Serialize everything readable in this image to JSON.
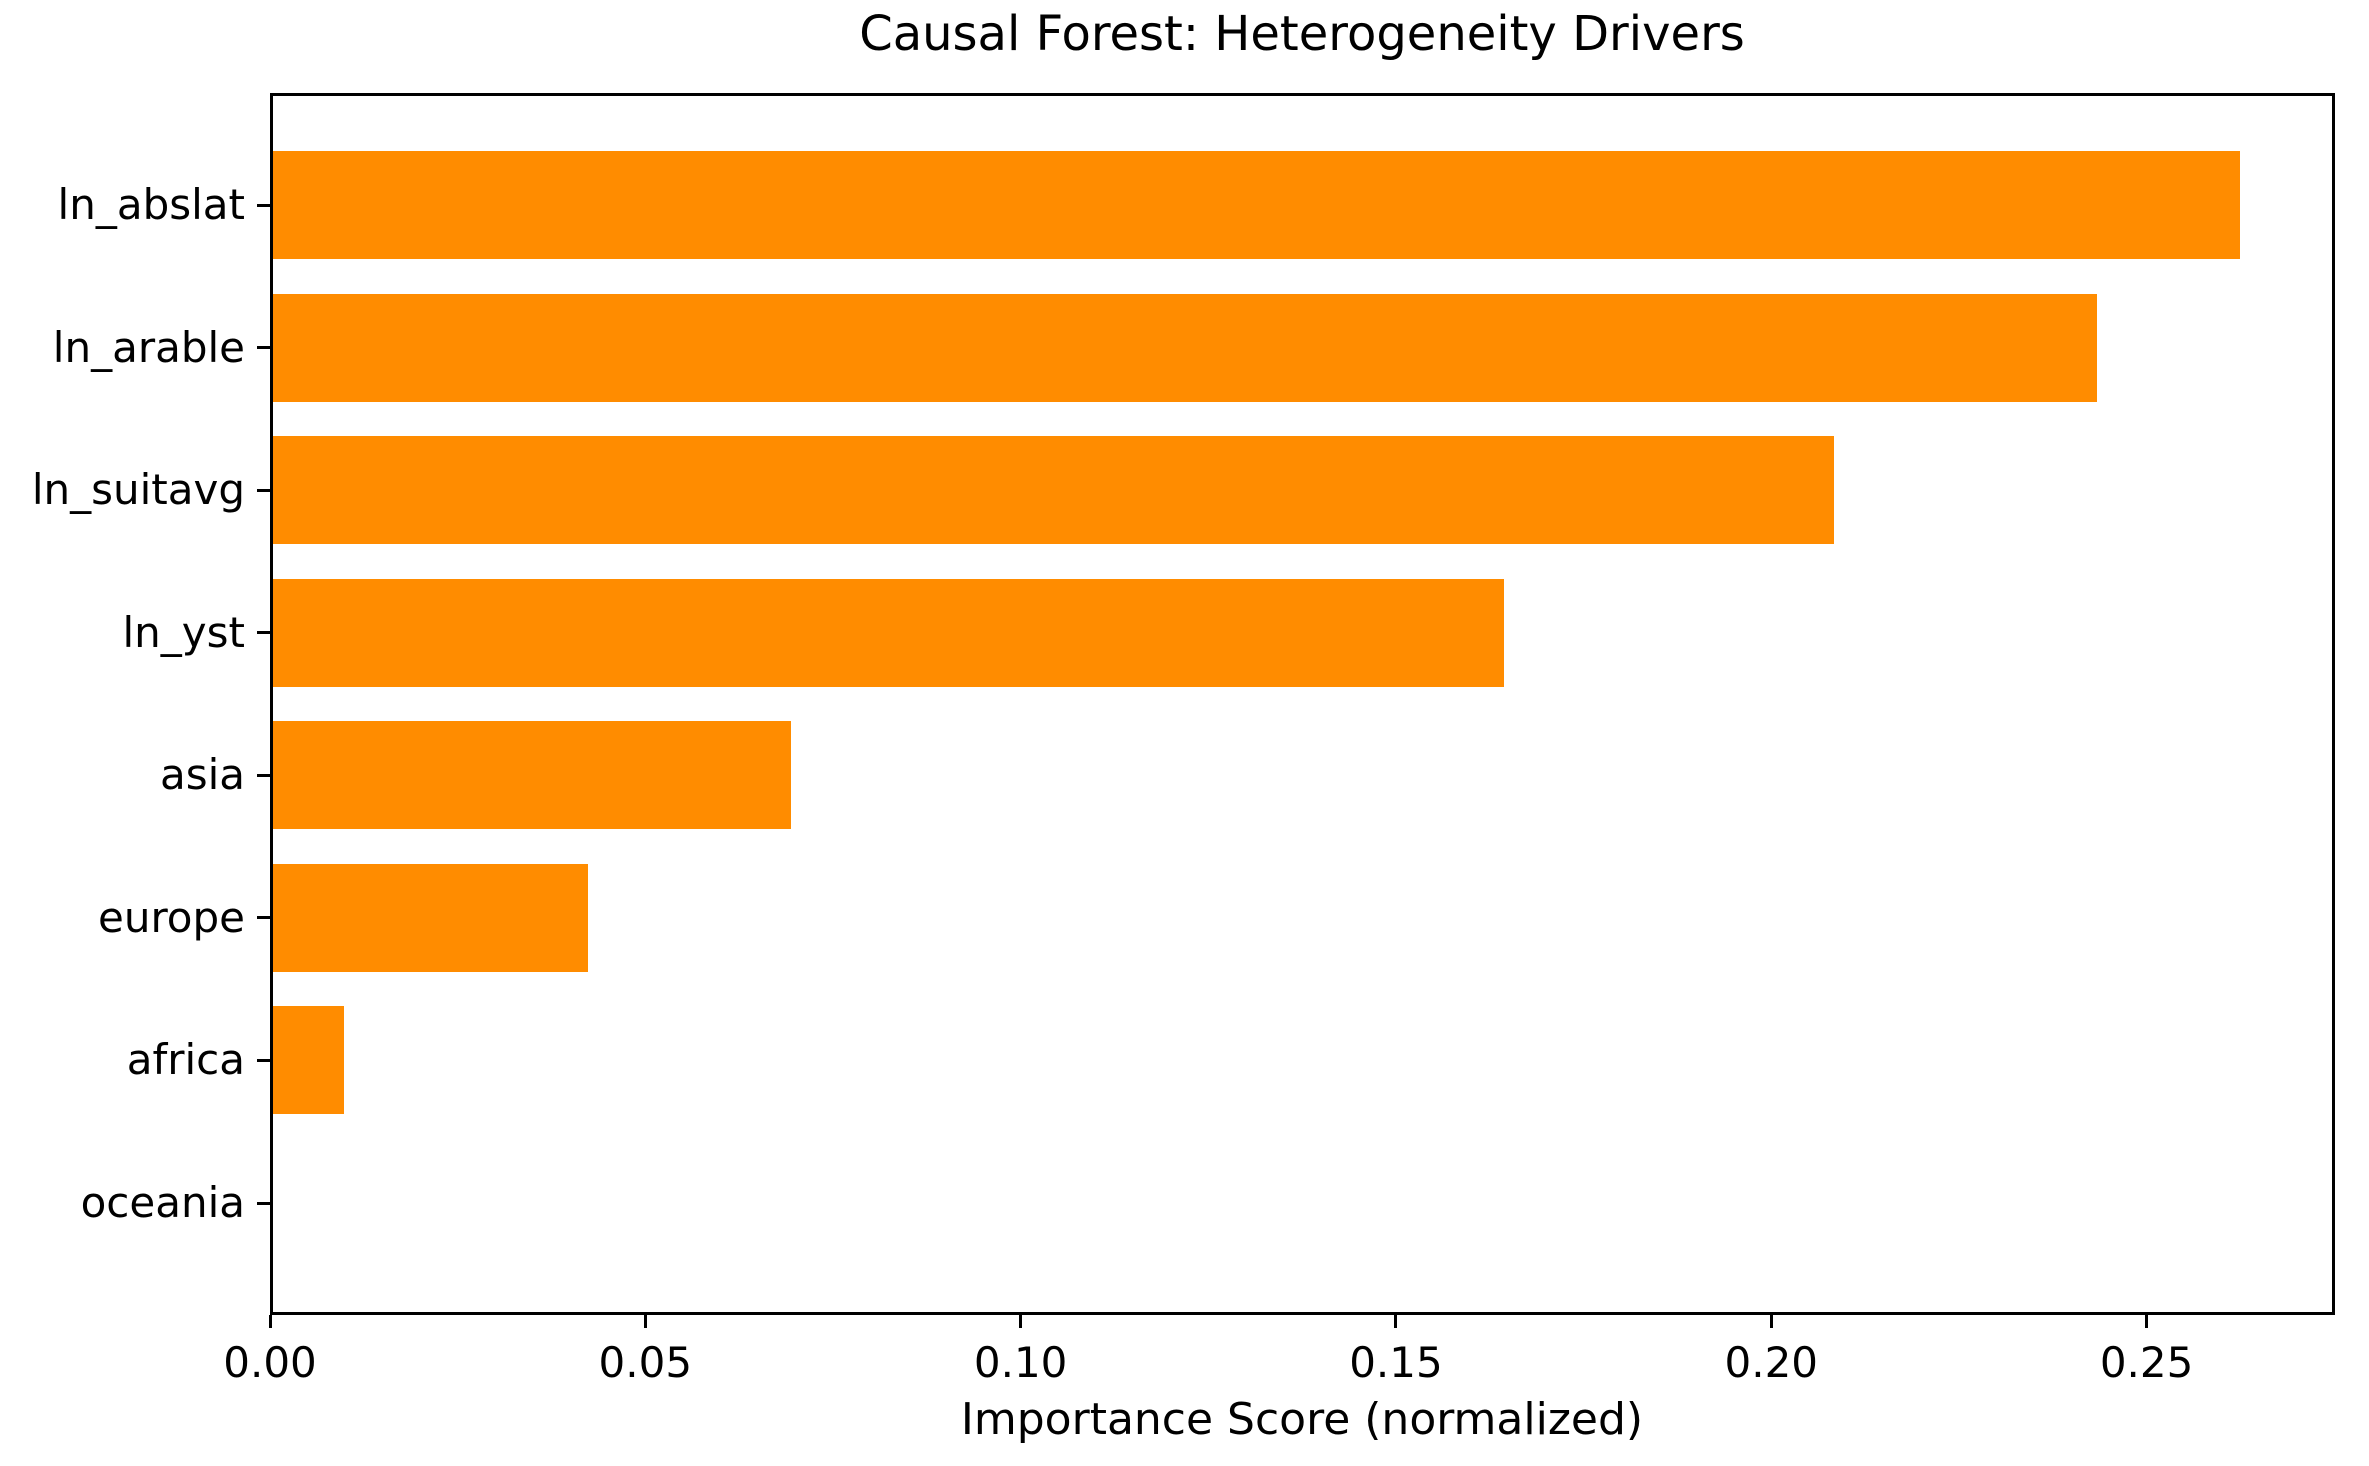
{
  "chart_data": {
    "type": "bar",
    "orientation": "horizontal",
    "title": "Causal Forest: Heterogeneity Drivers",
    "xlabel": "Importance Score (normalized)",
    "ylabel": "",
    "categories": [
      "ln_abslat",
      "ln_arable",
      "ln_suitavg",
      "ln_yst",
      "asia",
      "europe",
      "africa",
      "oceania"
    ],
    "values": [
      0.262,
      0.243,
      0.208,
      0.164,
      0.069,
      0.042,
      0.0095,
      0.0
    ],
    "xlim": [
      0,
      0.2751
    ],
    "xticks": {
      "values": [
        0.0,
        0.05,
        0.1,
        0.15,
        0.2,
        0.25
      ],
      "labels": [
        "0.00",
        "0.05",
        "0.10",
        "0.15",
        "0.20",
        "0.25"
      ]
    },
    "bar_color": "#FF8C00",
    "text_color": "#000000",
    "background_color": "#FFFFFF",
    "grid": false,
    "legend_position": "none"
  }
}
